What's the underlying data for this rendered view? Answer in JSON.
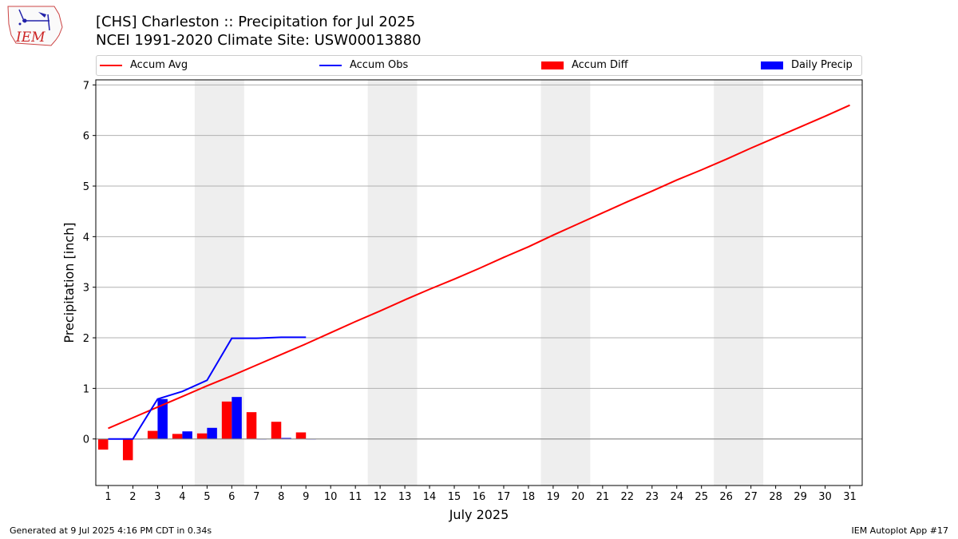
{
  "header": {
    "title_line1": "[CHS] Charleston :: Precipitation for Jul 2025",
    "title_line2": "NCEI 1991-2020 Climate Site: USW00013880"
  },
  "logo": {
    "text": "IEM"
  },
  "footer": {
    "left": "Generated at 9 Jul 2025 4:16 PM CDT in 0.34s",
    "right": "IEM Autoplot App #17"
  },
  "colors": {
    "avg": "#ff0000",
    "obs": "#0000ff",
    "diff": "#ff0000",
    "daily": "#0000ff",
    "weekend": "#eeeeee",
    "grid": "#b0b0b0"
  },
  "chart_data": {
    "type": "bar",
    "title": "[CHS] Charleston :: Precipitation for Jul 2025",
    "subtitle": "NCEI 1991-2020 Climate Site: USW00013880",
    "xlabel": "July 2025",
    "ylabel": "Precipitation [inch]",
    "ylim": [
      -0.92,
      7.1
    ],
    "yticks": [
      0,
      1,
      2,
      3,
      4,
      5,
      6,
      7
    ],
    "xlim": [
      0.5,
      31.5
    ],
    "x": [
      1,
      2,
      3,
      4,
      5,
      6,
      7,
      8,
      9,
      10,
      11,
      12,
      13,
      14,
      15,
      16,
      17,
      18,
      19,
      20,
      21,
      22,
      23,
      24,
      25,
      26,
      27,
      28,
      29,
      30,
      31
    ],
    "grid": "horizontal",
    "legend_position": "top",
    "weekend_spans": [
      [
        4.5,
        6.5
      ],
      [
        11.5,
        13.5
      ],
      [
        18.5,
        20.5
      ],
      [
        25.5,
        27.5
      ]
    ],
    "series": [
      {
        "name": "Accum Avg",
        "type": "line",
        "x": [
          1,
          2,
          3,
          4,
          5,
          6,
          7,
          8,
          9,
          10,
          11,
          12,
          13,
          14,
          15,
          16,
          17,
          18,
          19,
          20,
          21,
          22,
          23,
          24,
          25,
          26,
          27,
          28,
          29,
          30,
          31
        ],
        "values": [
          0.21,
          0.42,
          0.63,
          0.84,
          1.05,
          1.25,
          1.46,
          1.67,
          1.88,
          2.1,
          2.32,
          2.53,
          2.75,
          2.96,
          3.16,
          3.37,
          3.59,
          3.8,
          4.03,
          4.25,
          4.47,
          4.69,
          4.9,
          5.12,
          5.32,
          5.53,
          5.75,
          5.96,
          6.17,
          6.38,
          6.6
        ]
      },
      {
        "name": "Accum Obs",
        "type": "line",
        "x": [
          1,
          2,
          3,
          4,
          5,
          6,
          7,
          8,
          9
        ],
        "values": [
          0,
          0,
          0.79,
          0.94,
          1.16,
          1.99,
          1.99,
          2.01,
          2.01
        ]
      },
      {
        "name": "Accum Diff",
        "type": "bar",
        "x": [
          1,
          2,
          3,
          4,
          5,
          6,
          7,
          8,
          9
        ],
        "values": [
          -0.21,
          -0.42,
          0.16,
          0.1,
          0.11,
          0.74,
          0.53,
          0.34,
          0.13
        ]
      },
      {
        "name": "Daily Precip",
        "type": "bar",
        "x": [
          1,
          2,
          3,
          4,
          5,
          6,
          7,
          8,
          9
        ],
        "values": [
          0,
          0,
          0.79,
          0.15,
          0.22,
          0.83,
          0,
          0.02,
          0
        ]
      }
    ]
  }
}
